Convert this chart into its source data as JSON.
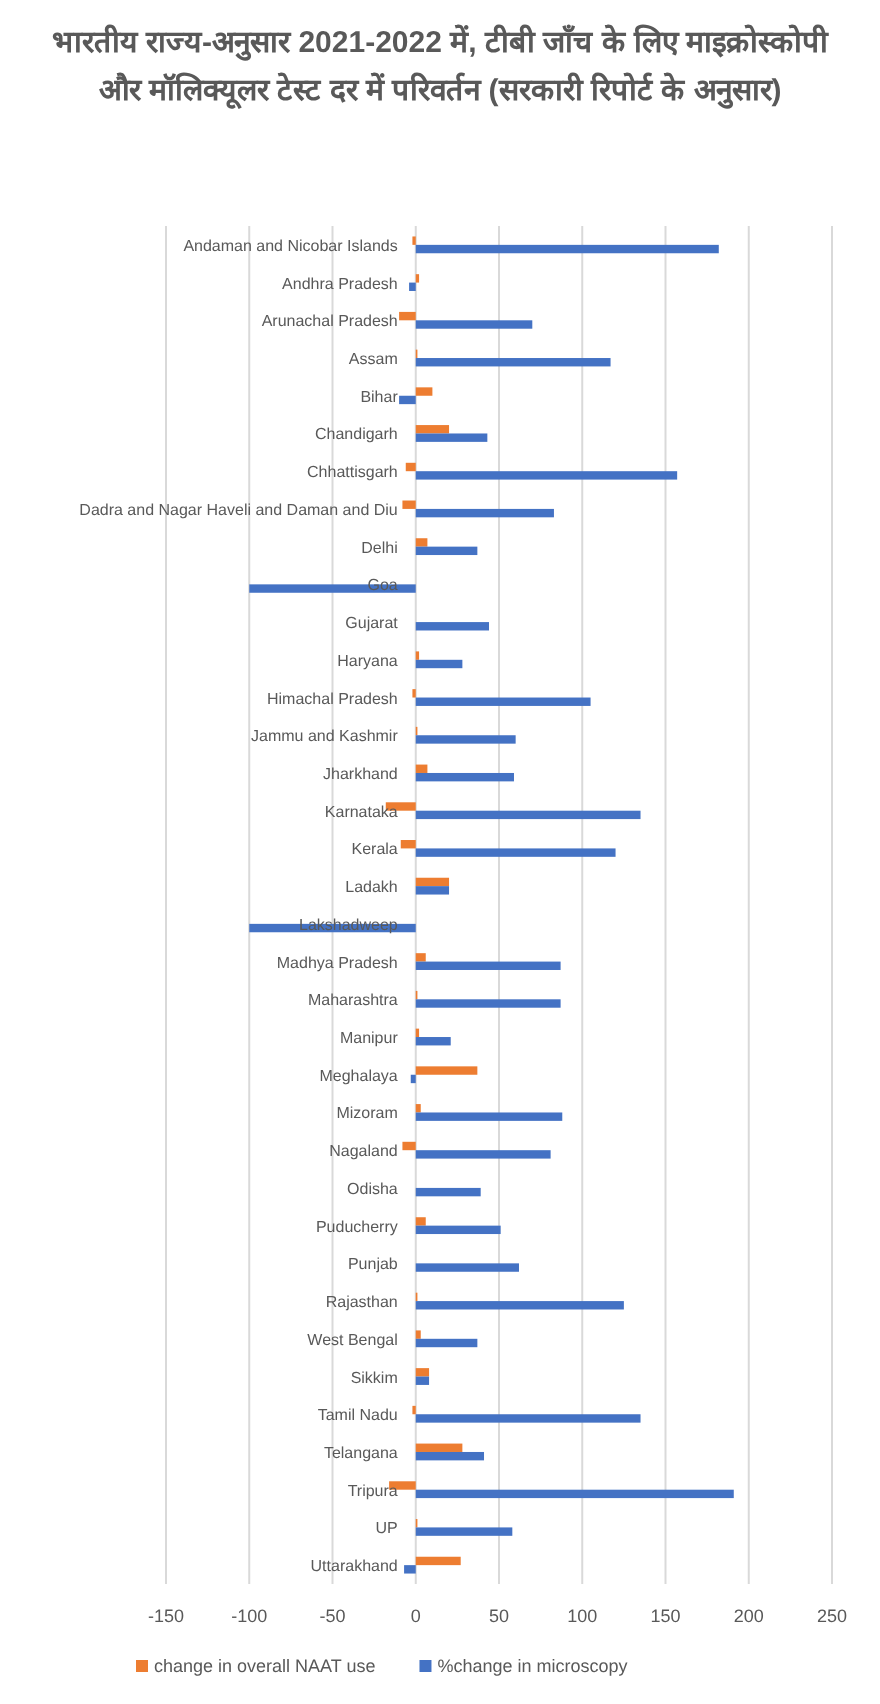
{
  "chart_data": {
    "type": "bar",
    "orientation": "horizontal",
    "title": "भारतीय राज्य-अनुसार 2021-2022 में, टीबी जाँच के लिए माइक्रोस्कोपी और मॉलिक्यूलर टेस्ट दर में परिवर्तन (सरकारी रिपोर्ट के अनुसार)",
    "categories": [
      "Andaman and Nicobar Islands",
      "Andhra Pradesh",
      "Arunachal Pradesh",
      "Assam",
      "Bihar",
      "Chandigarh",
      "Chhattisgarh",
      "Dadra and Nagar Haveli and Daman and Diu",
      "Delhi",
      "Goa",
      "Gujarat",
      "Haryana",
      "Himachal Pradesh",
      "Jammu and Kashmir",
      "Jharkhand",
      "Karnataka",
      "Kerala",
      "Ladakh",
      "Lakshadweep",
      "Madhya Pradesh",
      "Maharashtra",
      "Manipur",
      "Meghalaya",
      "Mizoram",
      "Nagaland",
      "Odisha",
      "Puducherry",
      "Punjab",
      "Rajasthan",
      "West Bengal",
      "Sikkim",
      "Tamil Nadu",
      "Telangana",
      "Tripura",
      "UP",
      "Uttarakhand"
    ],
    "series": [
      {
        "name": "change in overall NAAT use",
        "color": "#ed7d31",
        "values": [
          -2,
          2,
          -10,
          1,
          10,
          20,
          -6,
          -8,
          7,
          0,
          0,
          2,
          -2,
          1,
          7,
          -18,
          -9,
          20,
          0,
          6,
          1,
          2,
          37,
          3,
          -8,
          0,
          6,
          0,
          1,
          3,
          8,
          -2,
          28,
          -16,
          1,
          27
        ]
      },
      {
        "name": "%change in microscopy",
        "color": "#4472c4",
        "values": [
          182,
          -4,
          70,
          117,
          -10,
          43,
          157,
          83,
          37,
          -100,
          44,
          28,
          105,
          60,
          59,
          135,
          120,
          20,
          -100,
          87,
          87,
          21,
          -3,
          88,
          81,
          39,
          51,
          62,
          125,
          37,
          8,
          135,
          41,
          191,
          58,
          -7
        ]
      }
    ],
    "xlim": [
      -150,
      250
    ],
    "xticks": [
      -150,
      -100,
      -50,
      0,
      50,
      100,
      150,
      200,
      250
    ],
    "grid": "x",
    "legend": "bottom"
  }
}
